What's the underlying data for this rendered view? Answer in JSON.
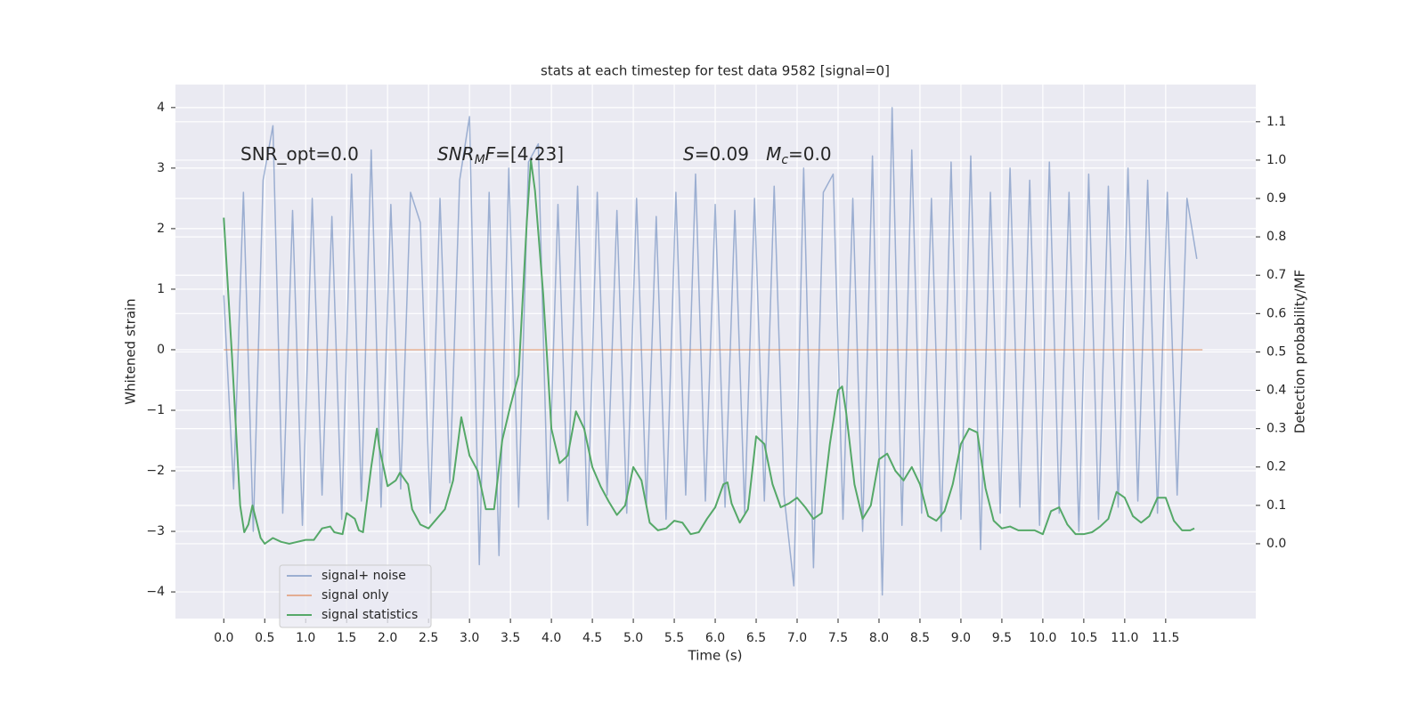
{
  "chart_data": {
    "type": "line",
    "title": "stats at each timestep for test data 9582 [signal=0]",
    "xlabel": "Time (s)",
    "ylabel": "Whitened strain",
    "y2label": "Detection probability/MF",
    "annotations": [
      [
        "SNR_opt=0.0"
      ],
      [
        "SNR",
        "M",
        "F",
        "=[4.23]"
      ],
      [
        "S",
        "=0.09   ",
        "M",
        "c",
        "=0.0"
      ]
    ],
    "xlim": [
      -0.59,
      12.6
    ],
    "ylim": [
      -4.44,
      4.38
    ],
    "y2lim": [
      -0.195,
      1.197
    ],
    "xticks": [
      {
        "value": 0,
        "label": "0.0"
      },
      0.5,
      {
        "value": 1,
        "label": "1.0"
      },
      1.5,
      {
        "value": 2,
        "label": "2.0"
      },
      2.5,
      {
        "value": 3,
        "label": "3.0"
      },
      3.5,
      {
        "value": 4,
        "label": "4.0"
      },
      4.5,
      {
        "value": 5,
        "label": "5.0"
      },
      5.5,
      {
        "value": 6,
        "label": "6.0"
      },
      6.5,
      {
        "value": 7,
        "label": "7.0"
      },
      7.5,
      {
        "value": 8,
        "label": "8.0"
      },
      8.5,
      {
        "value": 9,
        "label": "9.0"
      },
      9.5,
      {
        "value": 10,
        "label": "10.0"
      },
      10.5,
      {
        "value": 11,
        "label": "11.0"
      },
      11.5
    ],
    "yticks": [
      {
        "value": -4,
        "label": "−4"
      },
      {
        "value": -3,
        "label": "−3"
      },
      {
        "value": -2,
        "label": "−2"
      },
      {
        "value": -1,
        "label": "−1"
      },
      0,
      1,
      2,
      3,
      4
    ],
    "y2ticks": [
      {
        "value": 0,
        "label": "0.0"
      },
      0.1,
      0.2,
      0.3,
      0.4,
      0.5,
      0.6,
      0.7,
      0.8,
      0.9,
      {
        "value": 1,
        "label": "1.0"
      },
      1.1
    ],
    "grid": true,
    "legend": "lower left",
    "series": [
      {
        "name": "signal+ noise",
        "color": "#4c72b0",
        "opacity": 0.5,
        "axis": "y",
        "x": [
          0,
          0.12,
          0.24,
          0.36,
          0.48,
          0.6,
          0.72,
          0.84,
          0.96,
          1.08,
          1.2,
          1.32,
          1.44,
          1.56,
          1.68,
          1.8,
          1.92,
          2.04,
          2.16,
          2.28,
          2.4,
          2.52,
          2.64,
          2.76,
          2.88,
          3,
          3.12,
          3.24,
          3.36,
          3.48,
          3.6,
          3.72,
          3.84,
          3.96,
          4.08,
          4.2,
          4.32,
          4.44,
          4.56,
          4.68,
          4.8,
          4.92,
          5.04,
          5.16,
          5.28,
          5.4,
          5.52,
          5.64,
          5.76,
          5.88,
          6,
          6.12,
          6.24,
          6.36,
          6.48,
          6.6,
          6.72,
          6.84,
          6.96,
          7.08,
          7.2,
          7.32,
          7.44,
          7.56,
          7.68,
          7.8,
          7.92,
          8.04,
          8.16,
          8.28,
          8.4,
          8.52,
          8.64,
          8.76,
          8.88,
          9,
          9.12,
          9.24,
          9.36,
          9.48,
          9.6,
          9.72,
          9.84,
          9.96,
          10.08,
          10.2,
          10.32,
          10.44,
          10.56,
          10.68,
          10.8,
          10.92,
          11.04,
          11.16,
          11.28,
          11.4,
          11.52,
          11.64,
          11.76,
          11.88
        ],
        "values": [
          0.9,
          -2.3,
          2.6,
          -3.0,
          2.8,
          3.7,
          -2.7,
          2.3,
          -2.9,
          2.5,
          -2.4,
          2.2,
          -2.8,
          2.9,
          -2.5,
          3.3,
          -2.6,
          2.4,
          -2.3,
          2.6,
          2.1,
          -2.7,
          2.5,
          -2.2,
          2.8,
          3.85,
          -3.55,
          2.6,
          -3.4,
          3.0,
          -2.6,
          3.1,
          3.4,
          -2.8,
          2.4,
          -2.5,
          2.7,
          -2.9,
          2.6,
          -2.4,
          2.3,
          -2.7,
          2.5,
          -2.6,
          2.2,
          -2.8,
          2.6,
          -2.4,
          2.9,
          -2.5,
          2.4,
          -2.6,
          2.3,
          -2.7,
          2.5,
          -2.5,
          2.7,
          -2.4,
          -3.9,
          3.0,
          -3.6,
          2.6,
          2.9,
          -2.8,
          2.5,
          -3.0,
          3.2,
          -4.05,
          4.0,
          -2.9,
          3.3,
          -2.7,
          2.5,
          -3.0,
          3.1,
          -2.8,
          3.2,
          -3.3,
          2.6,
          -2.7,
          3.0,
          -2.6,
          2.8,
          -2.9,
          3.1,
          -2.7,
          2.6,
          -3.0,
          2.9,
          -2.8,
          2.7,
          -2.6,
          3.0,
          -2.5,
          2.8,
          -2.7,
          2.6,
          -2.4,
          2.5,
          1.5
        ]
      },
      {
        "name": "signal only",
        "color": "#dd8452",
        "opacity": 0.6,
        "axis": "y",
        "x": [
          0,
          11.95
        ],
        "values": [
          0,
          0
        ]
      },
      {
        "name": "signal statistics",
        "color": "#55a868",
        "opacity": 1,
        "axis": "y2",
        "x": [
          0,
          0.1,
          0.2,
          0.25,
          0.3,
          0.35,
          0.45,
          0.5,
          0.6,
          0.7,
          0.8,
          1.0,
          1.1,
          1.2,
          1.3,
          1.35,
          1.45,
          1.5,
          1.6,
          1.65,
          1.7,
          1.8,
          1.87,
          1.9,
          2.0,
          2.1,
          2.15,
          2.25,
          2.3,
          2.4,
          2.5,
          2.6,
          2.7,
          2.8,
          2.9,
          3.0,
          3.1,
          3.2,
          3.3,
          3.4,
          3.5,
          3.6,
          3.7,
          3.75,
          3.8,
          3.9,
          4.0,
          4.1,
          4.2,
          4.3,
          4.4,
          4.5,
          4.6,
          4.7,
          4.8,
          4.9,
          5.0,
          5.1,
          5.2,
          5.3,
          5.4,
          5.5,
          5.6,
          5.7,
          5.8,
          5.9,
          6.0,
          6.1,
          6.15,
          6.2,
          6.3,
          6.4,
          6.5,
          6.6,
          6.7,
          6.8,
          6.9,
          7.0,
          7.1,
          7.2,
          7.3,
          7.4,
          7.5,
          7.55,
          7.6,
          7.7,
          7.8,
          7.9,
          8.0,
          8.1,
          8.2,
          8.3,
          8.4,
          8.5,
          8.6,
          8.7,
          8.8,
          8.9,
          9.0,
          9.1,
          9.2,
          9.3,
          9.4,
          9.5,
          9.6,
          9.7,
          9.8,
          9.9,
          10.0,
          10.1,
          10.2,
          10.3,
          10.4,
          10.5,
          10.6,
          10.7,
          10.8,
          10.9,
          11.0,
          11.1,
          11.2,
          11.3,
          11.4,
          11.5,
          11.6,
          11.7,
          11.8,
          11.85
        ],
        "values": [
          0.85,
          0.49,
          0.1,
          0.03,
          0.05,
          0.1,
          0.015,
          0,
          0.015,
          0.005,
          0,
          0.01,
          0.01,
          0.04,
          0.045,
          0.03,
          0.025,
          0.08,
          0.065,
          0.035,
          0.03,
          0.2,
          0.3,
          0.25,
          0.15,
          0.165,
          0.185,
          0.155,
          0.09,
          0.05,
          0.04,
          0.065,
          0.09,
          0.165,
          0.33,
          0.23,
          0.19,
          0.09,
          0.09,
          0.27,
          0.36,
          0.44,
          0.84,
          1.0,
          0.92,
          0.65,
          0.3,
          0.21,
          0.23,
          0.345,
          0.3,
          0.2,
          0.15,
          0.11,
          0.075,
          0.1,
          0.2,
          0.165,
          0.055,
          0.035,
          0.04,
          0.06,
          0.055,
          0.025,
          0.03,
          0.065,
          0.095,
          0.155,
          0.16,
          0.105,
          0.055,
          0.09,
          0.28,
          0.26,
          0.155,
          0.095,
          0.105,
          0.12,
          0.095,
          0.065,
          0.08,
          0.26,
          0.4,
          0.41,
          0.34,
          0.155,
          0.065,
          0.1,
          0.22,
          0.235,
          0.19,
          0.165,
          0.2,
          0.155,
          0.072,
          0.06,
          0.085,
          0.155,
          0.26,
          0.3,
          0.29,
          0.145,
          0.06,
          0.04,
          0.045,
          0.035,
          0.035,
          0.035,
          0.025,
          0.085,
          0.095,
          0.05,
          0.025,
          0.025,
          0.03,
          0.045,
          0.065,
          0.135,
          0.12,
          0.072,
          0.055,
          0.072,
          0.12,
          0.12,
          0.06,
          0.035,
          0.035,
          0.04
        ]
      }
    ]
  }
}
